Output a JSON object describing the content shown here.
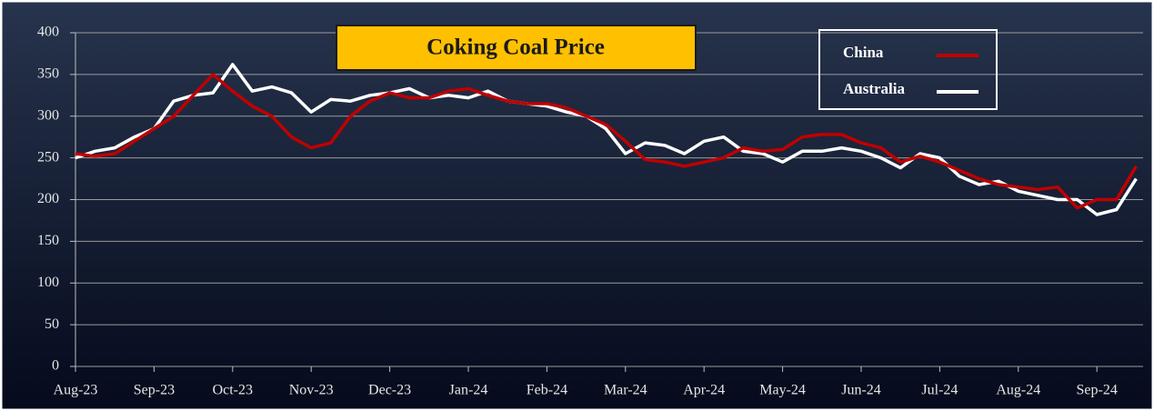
{
  "chart_data": {
    "type": "line",
    "title": "Coking Coal Price",
    "categories": [
      "Aug-23",
      null,
      null,
      null,
      "Sep-23",
      null,
      null,
      null,
      "Oct-23",
      null,
      null,
      null,
      "Nov-23",
      null,
      null,
      null,
      "Dec-23",
      null,
      null,
      null,
      "Jan-24",
      null,
      null,
      null,
      "Feb-24",
      null,
      null,
      null,
      "Mar-24",
      null,
      null,
      null,
      "Apr-24",
      null,
      null,
      null,
      "May-24",
      null,
      null,
      null,
      "Jun-24",
      null,
      null,
      null,
      "Jul-24",
      null,
      null,
      null,
      "Aug-24",
      null,
      null,
      null,
      "Sep-24",
      null,
      null
    ],
    "series": [
      {
        "name": "China",
        "color": "#c00000",
        "values": [
          255,
          252,
          255,
          270,
          285,
          300,
          325,
          350,
          330,
          312,
          300,
          275,
          262,
          268,
          300,
          318,
          328,
          322,
          322,
          330,
          333,
          325,
          318,
          315,
          315,
          310,
          300,
          290,
          270,
          248,
          245,
          240,
          245,
          250,
          262,
          258,
          260,
          275,
          278,
          278,
          268,
          262,
          245,
          252,
          245,
          235,
          225,
          218,
          215,
          212,
          215,
          190,
          200,
          200,
          240
        ]
      },
      {
        "name": "Australia",
        "color": "#ffffff",
        "values": [
          250,
          258,
          262,
          275,
          285,
          318,
          325,
          328,
          362,
          330,
          335,
          328,
          305,
          320,
          318,
          325,
          328,
          333,
          322,
          325,
          322,
          330,
          318,
          315,
          312,
          305,
          300,
          285,
          255,
          268,
          265,
          255,
          270,
          275,
          258,
          255,
          245,
          258,
          258,
          262,
          258,
          250,
          238,
          255,
          250,
          228,
          218,
          222,
          210,
          205,
          200,
          200,
          182,
          188,
          225
        ]
      }
    ],
    "ylim": [
      0,
      400
    ],
    "yticks": [
      0,
      50,
      100,
      150,
      200,
      250,
      300,
      350,
      400
    ],
    "grid": true,
    "legend": "upper right"
  }
}
